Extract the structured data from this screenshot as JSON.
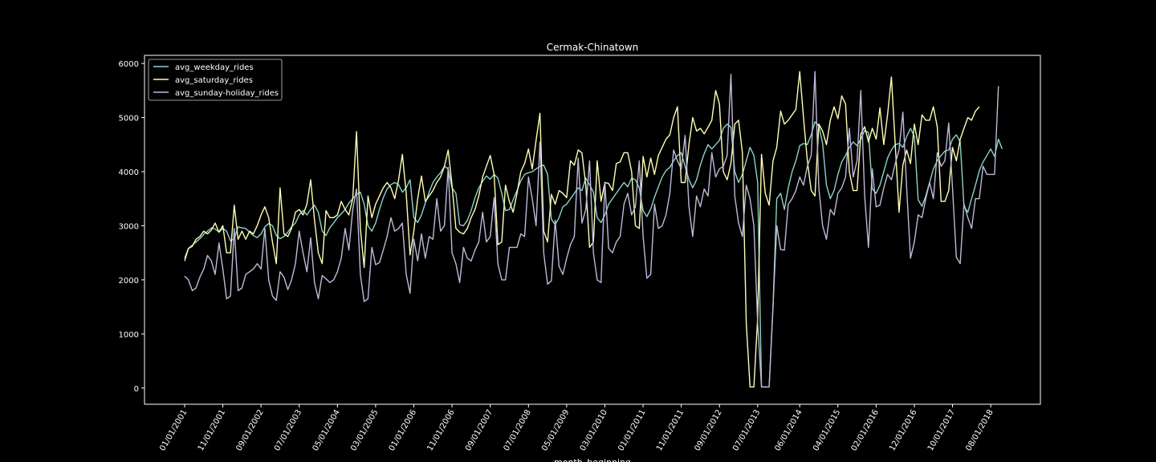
{
  "chart_data": {
    "type": "line",
    "title": "Cermak-Chinatown",
    "xlabel": "month_beginning",
    "ylabel": "",
    "ylim": [
      -300,
      6150
    ],
    "y_ticks": [
      0,
      1000,
      2000,
      3000,
      4000,
      5000,
      6000
    ],
    "x_tick_labels": [
      "01/01/2001",
      "11/01/2001",
      "09/01/2002",
      "07/01/2003",
      "05/01/2004",
      "03/01/2005",
      "01/01/2006",
      "11/01/2006",
      "09/01/2007",
      "07/01/2008",
      "05/01/2009",
      "03/01/2010",
      "01/01/2011",
      "11/01/2011",
      "09/01/2012",
      "07/01/2013",
      "06/01/2014",
      "04/01/2015",
      "02/01/2016",
      "12/01/2016",
      "10/01/2017",
      "08/01/2018"
    ],
    "x_tick_month_index": [
      0,
      10,
      20,
      30,
      40,
      50,
      60,
      70,
      80,
      90,
      100,
      110,
      120,
      130,
      140,
      150,
      161,
      171,
      181,
      191,
      201,
      211
    ],
    "x_range_months": [
      -10.5,
      224
    ],
    "start_month": "01/2001",
    "legend_position": "upper-left",
    "grid": false,
    "series": [
      {
        "name": "avg_weekday_rides",
        "color": "#8dd3c7",
        "values": [
          2400,
          2580,
          2640,
          2700,
          2760,
          2840,
          2900,
          2960,
          2940,
          2880,
          2950,
          2900,
          2720,
          2760,
          2980,
          2960,
          2950,
          2880,
          2820,
          2780,
          2850,
          2980,
          3040,
          3000,
          2820,
          2760,
          2800,
          2880,
          2980,
          3050,
          3200,
          3280,
          3200,
          3300,
          3380,
          3250,
          2900,
          2820,
          2960,
          3050,
          3150,
          3220,
          3300,
          3420,
          3500,
          3580,
          3620,
          3400,
          3000,
          2900,
          3050,
          3300,
          3520,
          3680,
          3760,
          3800,
          3760,
          3620,
          3700,
          3850,
          3150,
          3060,
          3200,
          3420,
          3620,
          3800,
          3900,
          3980,
          4100,
          4050,
          3700,
          3600,
          3020,
          3000,
          3100,
          3280,
          3520,
          3700,
          3820,
          3920,
          3860,
          3950,
          3880,
          3600,
          3280,
          3300,
          3480,
          3650,
          3830,
          3950,
          3980,
          4000,
          4050,
          4100,
          4120,
          3950,
          3120,
          3020,
          3150,
          3350,
          3400,
          3500,
          3600,
          3700,
          3650,
          3880,
          3760,
          3620,
          3150,
          3060,
          3200,
          3400,
          3500,
          3600,
          3700,
          3800,
          3720,
          3880,
          3850,
          3700,
          3280,
          3170,
          3310,
          3530,
          3720,
          3900,
          4020,
          4080,
          4200,
          4300,
          4350,
          4100,
          3850,
          3700,
          3850,
          4120,
          4330,
          4500,
          4420,
          4500,
          4580,
          4800,
          4880,
          4820,
          4000,
          3800,
          3950,
          4200,
          4450,
          4300,
          3800,
          20,
          20,
          20,
          1500,
          3500,
          3600,
          3300,
          3700,
          4000,
          4200,
          4480,
          4520,
          4500,
          4680,
          4920,
          4850,
          4520,
          3750,
          3500,
          3650,
          3950,
          4180,
          4300,
          4450,
          4550,
          4480,
          4600,
          4760,
          4720,
          3680,
          3600,
          3750,
          4000,
          4250,
          4400,
          4500,
          4520,
          4450,
          4650,
          4800,
          4650,
          3480,
          3360,
          3550,
          3800,
          4050,
          4200,
          4300,
          4380,
          4400,
          4600,
          4680,
          4550,
          3360,
          3250,
          3500,
          3750,
          4020,
          4180,
          4300,
          4420,
          4280,
          4600,
          4420
        ]
      },
      {
        "name": "avg_saturday_rides",
        "color": "#ffffb3",
        "values": [
          2350,
          2580,
          2620,
          2750,
          2800,
          2900,
          2850,
          2920,
          3050,
          2880,
          3000,
          2500,
          2500,
          3380,
          2750,
          2900,
          2750,
          2900,
          2850,
          3000,
          3200,
          3350,
          3150,
          2700,
          2300,
          3700,
          2850,
          2800,
          2950,
          3250,
          3300,
          3200,
          3400,
          3850,
          3100,
          2500,
          2300,
          3280,
          3150,
          3150,
          3200,
          3450,
          3300,
          3200,
          3500,
          4740,
          2950,
          2230,
          3550,
          3150,
          3400,
          3550,
          3700,
          3800,
          3700,
          3500,
          3850,
          4320,
          3600,
          2460,
          2900,
          3500,
          3920,
          3450,
          3550,
          3650,
          3800,
          3900,
          4100,
          4400,
          3750,
          2950,
          2880,
          2850,
          2950,
          3150,
          3300,
          3550,
          3900,
          4100,
          4300,
          3950,
          2650,
          2700,
          3750,
          3450,
          3250,
          3600,
          4000,
          4150,
          4420,
          4050,
          4580,
          5080,
          2900,
          2700,
          3580,
          3400,
          3650,
          3600,
          3520,
          4200,
          4120,
          4400,
          4350,
          3750,
          2600,
          2700,
          4200,
          3450,
          3800,
          3780,
          3650,
          4150,
          4180,
          4350,
          4350,
          4000,
          3000,
          2950,
          4280,
          3900,
          4250,
          3950,
          4300,
          4450,
          4600,
          4680,
          5000,
          5200,
          3800,
          3800,
          4500,
          5000,
          4750,
          4800,
          4700,
          4820,
          4950,
          5500,
          5250,
          4000,
          3850,
          4150,
          4880,
          4950,
          4350,
          1200,
          20,
          20,
          1300,
          4320,
          3600,
          3380,
          4200,
          4450,
          5120,
          4880,
          4950,
          5050,
          5150,
          5850,
          5000,
          4200,
          3650,
          3550,
          4880,
          4750,
          4500,
          4950,
          5200,
          4980,
          5400,
          5250,
          4000,
          3650,
          3650,
          4700,
          4830,
          4550,
          4800,
          4600,
          5180,
          4500,
          5050,
          5750,
          4500,
          3250,
          4120,
          4400,
          4150,
          4880,
          4500,
          5050,
          4950,
          4950,
          5200,
          4830,
          3450,
          3450,
          3650,
          4450,
          4200,
          4600,
          4800,
          5000,
          4950,
          5120,
          5200
        ]
      },
      {
        "name": "avg_sunday-holiday_rides",
        "color": "#bebada",
        "values": [
          2070,
          2000,
          1800,
          1850,
          2050,
          2200,
          2450,
          2350,
          2100,
          2680,
          2200,
          1650,
          1700,
          2950,
          1800,
          1850,
          2100,
          2150,
          2200,
          2300,
          2200,
          2950,
          2000,
          1700,
          1620,
          2150,
          2050,
          1820,
          2000,
          2300,
          2900,
          2500,
          2150,
          2780,
          1950,
          1650,
          2080,
          2020,
          1950,
          2000,
          2150,
          2400,
          2950,
          2550,
          3300,
          3680,
          2100,
          1600,
          1650,
          2600,
          2280,
          2320,
          2550,
          2800,
          3150,
          2900,
          2950,
          3050,
          2100,
          1750,
          2750,
          2350,
          2850,
          2400,
          2800,
          2750,
          3500,
          2900,
          3000,
          4080,
          2500,
          2300,
          1950,
          2600,
          2400,
          2350,
          2550,
          2700,
          3250,
          2700,
          2800,
          3520,
          2300,
          2000,
          2000,
          2600,
          2600,
          2600,
          2850,
          2800,
          3900,
          3500,
          3000,
          4550,
          2500,
          1920,
          1980,
          3100,
          2250,
          2100,
          2400,
          2650,
          2800,
          4250,
          3050,
          3300,
          4200,
          2500,
          2000,
          1950,
          3800,
          2580,
          2500,
          2700,
          2800,
          3400,
          3600,
          3200,
          3350,
          4200,
          2800,
          2030,
          2100,
          3400,
          2950,
          3000,
          3200,
          3600,
          4400,
          4200,
          4050,
          4670,
          3350,
          2800,
          3550,
          3350,
          3680,
          3550,
          4350,
          3900,
          4050,
          4100,
          4300,
          5800,
          3550,
          3050,
          2800,
          3750,
          3500,
          3000,
          1200,
          20,
          20,
          20,
          1500,
          3000,
          2560,
          2550,
          3400,
          3500,
          3650,
          3900,
          3750,
          4100,
          4300,
          5850,
          3700,
          3000,
          2750,
          3300,
          3200,
          3600,
          3700,
          3900,
          4800,
          3900,
          4200,
          5500,
          3550,
          2600,
          4050,
          3350,
          3380,
          3700,
          3950,
          3850,
          4150,
          4400,
          5100,
          3700,
          2400,
          2700,
          3200,
          3150,
          3500,
          3800,
          3500,
          4350,
          4100,
          4200,
          4900,
          3700,
          2420,
          2300,
          3400,
          3150,
          2950,
          3500,
          3500,
          4100,
          3950,
          3950,
          3950,
          5580
        ]
      }
    ]
  }
}
